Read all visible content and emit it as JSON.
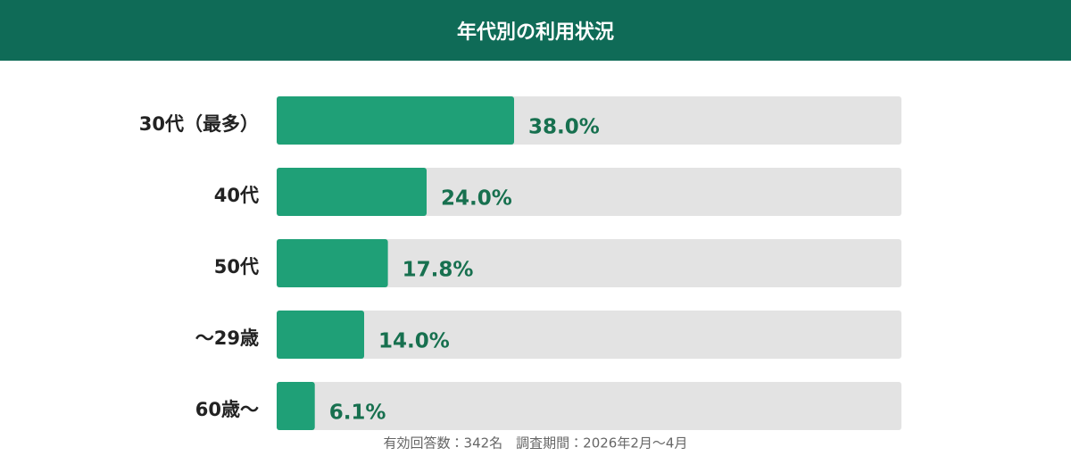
{
  "chart_data": {
    "type": "bar",
    "title": "年代別の利用状況",
    "categories": [
      "30代（最多）",
      "40代",
      "50代",
      "〜29歳",
      "60歳〜"
    ],
    "values": [
      38.0,
      24.0,
      17.8,
      14.0,
      6.1
    ],
    "value_labels": [
      "38.0%",
      "24.0%",
      "17.8%",
      "14.0%",
      "6.1%"
    ],
    "color": "#1fa077",
    "xlim": [
      0,
      100
    ],
    "note": "有効回答数：342名　調査期間：2026年2月〜4月"
  }
}
